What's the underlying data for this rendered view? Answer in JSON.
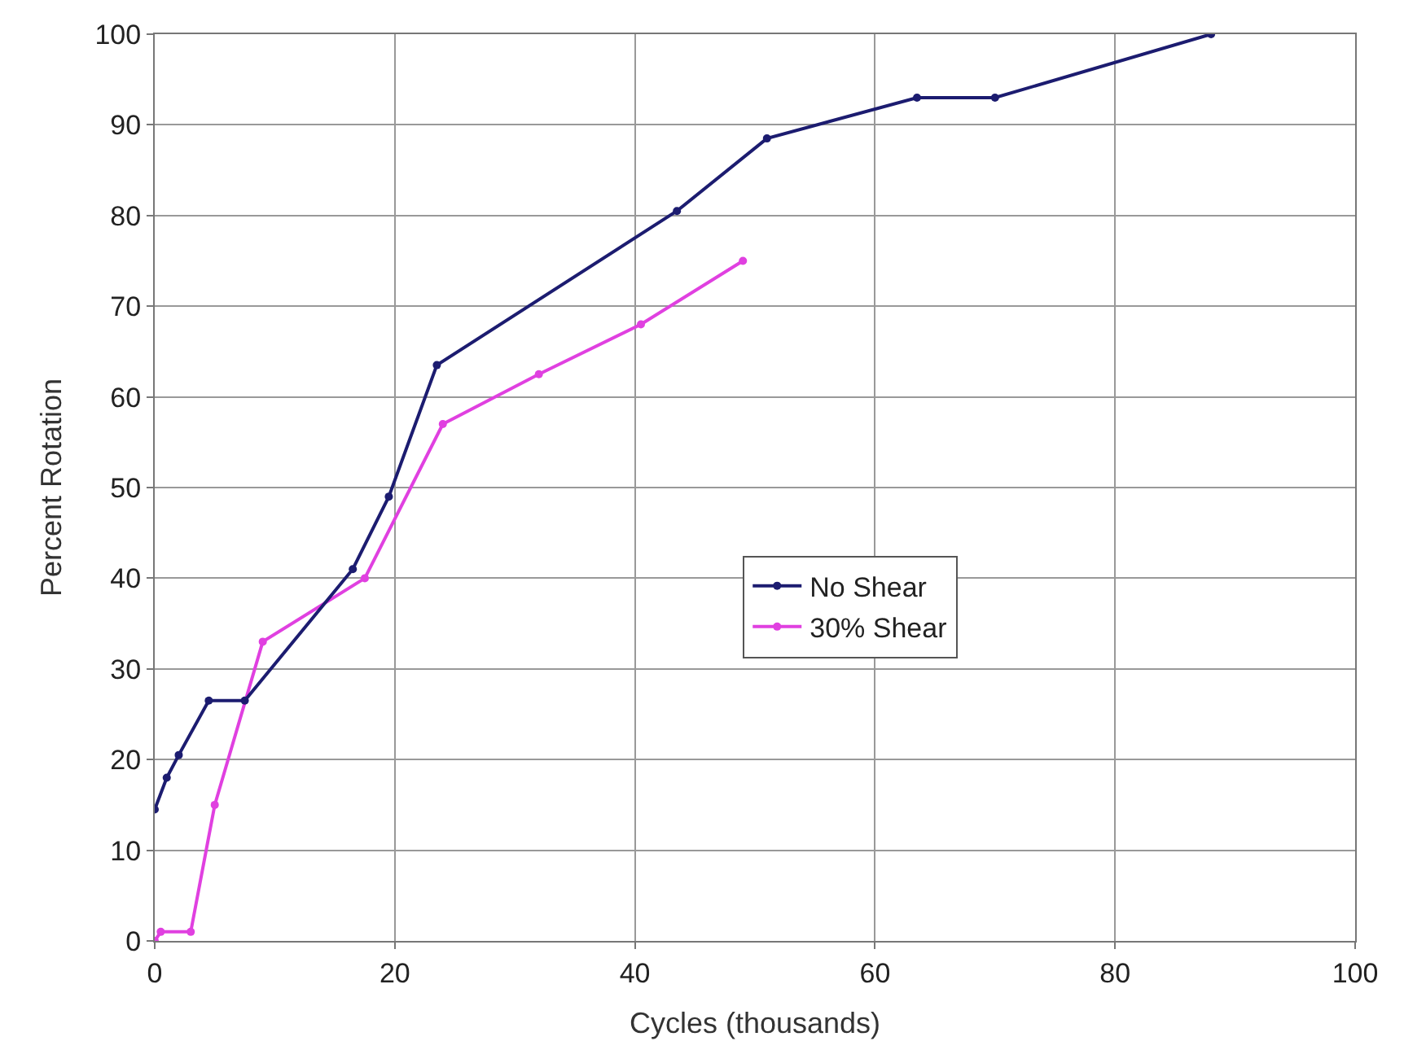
{
  "chart_data": {
    "type": "line",
    "xlabel": "Cycles (thousands)",
    "ylabel": "Percent Rotation",
    "xlim": [
      0,
      100
    ],
    "xticks": [
      0,
      20,
      40,
      60,
      80,
      100
    ],
    "ylim": [
      0,
      100
    ],
    "yticks": [
      0,
      10,
      20,
      30,
      40,
      50,
      60,
      70,
      80,
      90,
      100
    ],
    "grid": true,
    "legend": "center",
    "marker": "circle",
    "line_style": "solid",
    "series": [
      {
        "name": "No Shear",
        "color": "#1c1c70",
        "x": [
          0,
          1,
          2,
          4.5,
          7.5,
          16.5,
          19.5,
          23.5,
          43.5,
          51,
          63.5,
          70,
          88
        ],
        "values": [
          14.5,
          18,
          20.5,
          26.5,
          26.5,
          41,
          49,
          63.5,
          80.5,
          88.5,
          93,
          93,
          100
        ]
      },
      {
        "name": "30% Shear",
        "color": "#e040e0",
        "x": [
          0,
          0.5,
          3,
          5,
          9,
          17.5,
          24,
          32,
          40.5,
          49
        ],
        "values": [
          0,
          1,
          1,
          15,
          33,
          40,
          57,
          62.5,
          68,
          75
        ]
      }
    ]
  }
}
